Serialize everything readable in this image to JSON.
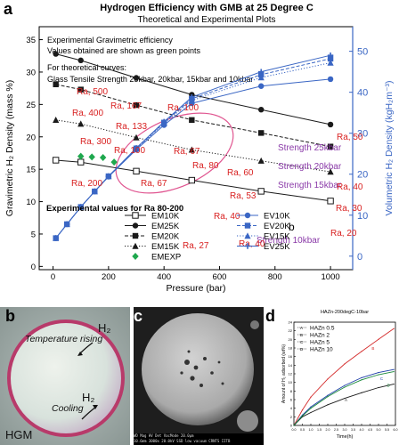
{
  "panel_labels": {
    "a": "a",
    "b": "b",
    "c": "c",
    "d": "d"
  },
  "colors": {
    "black_series": "#1a1a1a",
    "blue_series": "#3a66c4",
    "green_series": "#1fa84e",
    "annotation_red": "#d82020",
    "strength_purple": "#8a3aa8",
    "ellipse": "#e05590"
  },
  "chart_data": [
    {
      "type": "line",
      "title": "Hydrogen Efficiency with GMB at 25 Degree C",
      "subtitle": "Theoretical and Experimental Plots",
      "xlabel": "Pressure (bar)",
      "ylabel": "Gravimetric H₂ Density (mass %)",
      "y2label": "Volumetric H₂ Density (kgH₂m⁻³)",
      "xlim": [
        -50,
        1080
      ],
      "ylim": [
        -0.5,
        37
      ],
      "y2lim": [
        -3.3,
        56
      ],
      "xticks": [
        0,
        200,
        400,
        600,
        800,
        1000
      ],
      "yticks": [
        0,
        5,
        10,
        15,
        20,
        25,
        30,
        35
      ],
      "y2ticks": [
        0,
        10,
        20,
        30,
        40,
        50
      ],
      "notes": [
        "Experimental Gravimetric efficiency",
        "Values obtained are shown as green points",
        "For theoretical curves:",
        "Glass Tensile Strength  25kbar, 20kbar, 15kbar and 10kbar"
      ],
      "experimental_note": "Experimental values for Ra 80-200",
      "series": [
        {
          "name": "EM10K",
          "axis": "left",
          "marker": "square-open",
          "style": "solid",
          "x": [
            10,
            100,
            300,
            500,
            750,
            1000
          ],
          "y": [
            16.4,
            16.1,
            14.7,
            13.3,
            11.6,
            10.1
          ]
        },
        {
          "name": "EM25K",
          "axis": "left",
          "marker": "circle",
          "style": "solid",
          "x": [
            10,
            100,
            300,
            500,
            750,
            1000
          ],
          "y": [
            32.8,
            31.8,
            29.1,
            26.5,
            24.2,
            21.9
          ]
        },
        {
          "name": "EM20K",
          "axis": "left",
          "marker": "square",
          "style": "dashed",
          "x": [
            10,
            100,
            300,
            500,
            750,
            1000
          ],
          "y": [
            28.1,
            27.3,
            24.9,
            22.6,
            20.6,
            18.5
          ]
        },
        {
          "name": "EM15K",
          "axis": "left",
          "marker": "triangle",
          "style": "dotted",
          "x": [
            10,
            100,
            300,
            500,
            750,
            1000
          ],
          "y": [
            22.6,
            22.0,
            19.9,
            18.0,
            16.3,
            14.6
          ]
        },
        {
          "name": "EMEXP",
          "axis": "left",
          "marker": "diamond",
          "style": "none",
          "x": [
            100,
            140,
            180,
            220
          ],
          "y": [
            17.0,
            16.9,
            16.8,
            16.1
          ]
        },
        {
          "name": "EV10K",
          "axis": "right",
          "marker": "circle",
          "style": "solid",
          "x": [
            10,
            50,
            100,
            150,
            200,
            300,
            400,
            500,
            750,
            1000
          ],
          "y": [
            4.4,
            7.8,
            12.0,
            15.8,
            19.4,
            26.0,
            32.0,
            37.3,
            41.5,
            43.2
          ]
        },
        {
          "name": "EV20K",
          "axis": "right",
          "marker": "square",
          "style": "dashed",
          "x": [
            10,
            50,
            100,
            150,
            200,
            300,
            400,
            500,
            750,
            1000
          ],
          "y": [
            4.4,
            7.8,
            12.0,
            15.8,
            19.5,
            26.3,
            32.6,
            38.4,
            44.3,
            48.2
          ]
        },
        {
          "name": "EV15K",
          "axis": "right",
          "marker": "triangle",
          "style": "dotted",
          "x": [
            10,
            50,
            100,
            150,
            200,
            300,
            400,
            500,
            750,
            1000
          ],
          "y": [
            4.4,
            7.8,
            12.0,
            15.8,
            19.5,
            26.2,
            32.4,
            38.0,
            43.6,
            47.2
          ]
        },
        {
          "name": "EV25K",
          "axis": "right",
          "marker": "plus",
          "style": "solid",
          "x": [
            10,
            50,
            100,
            150,
            200,
            300,
            400,
            500,
            750,
            1000
          ],
          "y": [
            4.4,
            7.8,
            12.0,
            15.8,
            19.5,
            26.4,
            32.8,
            38.8,
            45.0,
            49.0
          ]
        }
      ],
      "strength_labels": [
        "Strength 25kbar",
        "Strength 20kbar",
        "Strength 15kbar",
        "Strength 10kbar"
      ],
      "ra_labels": [
        "Ra, 500",
        "Ra, 400",
        "Ra, 300",
        "Ra, 200",
        "Ra, 167",
        "Ra, 133",
        "Ra, 100",
        "Ra, 100",
        "Ra, 80",
        "Ra, 67",
        "Ra, 67",
        "Ra, 60",
        "Ra, 53",
        "Ra, 50",
        "Ra, 40",
        "Ra, 40",
        "Ra, 40",
        "Ra, 30",
        "Ra, 27",
        "Ra, 20"
      ],
      "point_label": "b",
      "legend_placement": "bottom-center"
    },
    {
      "type": "line",
      "title": "HAZn-200degC-10bar",
      "xlabel": "Time(h)",
      "ylabel": "Amount of H₂ adsorbed (wt%)",
      "xlim": [
        0,
        6
      ],
      "ylim": [
        0,
        24
      ],
      "xticks": [
        0.0,
        0.5,
        1.0,
        1.5,
        2.0,
        2.5,
        3.0,
        3.5,
        4.0,
        4.5,
        5.0,
        5.5,
        6.0
      ],
      "yticks": [
        0,
        2,
        4,
        6,
        8,
        10,
        12,
        14,
        16,
        18,
        20,
        22,
        24
      ],
      "series": [
        {
          "name": "HAZn 0.5",
          "letter": "A",
          "x": [
            0,
            0.5,
            1,
            2,
            3,
            4,
            5,
            5.9
          ],
          "y": [
            0,
            2.0,
            3.0,
            4.8,
            6.3,
            7.6,
            8.8,
            9.6
          ]
        },
        {
          "name": "HAZn 2",
          "letter": "B",
          "x": [
            0,
            0.5,
            1,
            2,
            3,
            4,
            5,
            5.9
          ],
          "y": [
            0,
            3.6,
            6.6,
            10.8,
            14.3,
            17.2,
            20.0,
            22.5
          ]
        },
        {
          "name": "HAZn 5",
          "letter": "C",
          "x": [
            0,
            0.5,
            1,
            2,
            3,
            4,
            5,
            5.9
          ],
          "y": [
            0,
            2.4,
            4.3,
            7.0,
            9.3,
            11.1,
            12.3,
            13.0
          ]
        },
        {
          "name": "HAZn 10",
          "letter": "D",
          "x": [
            0,
            0.5,
            1,
            2,
            3,
            4,
            5,
            5.9
          ],
          "y": [
            0,
            2.2,
            4.0,
            6.7,
            8.9,
            10.6,
            11.8,
            12.5
          ]
        }
      ],
      "legend_placement": "top-left"
    }
  ],
  "photo_b": {
    "label_h2_top": "H₂",
    "label_temp": "Temperature rising",
    "label_h2_bottom": "H₂",
    "label_cooling": "Cooling",
    "label_hgm": "HGM"
  },
  "photo_c": {
    "footer_line1": "WD    Mag    HV    Det    VacMode                20.0μm",
    "footer_line2": "10.6mm 3000x 20.0kV SSD low vacuum              CRNTS IITB"
  }
}
